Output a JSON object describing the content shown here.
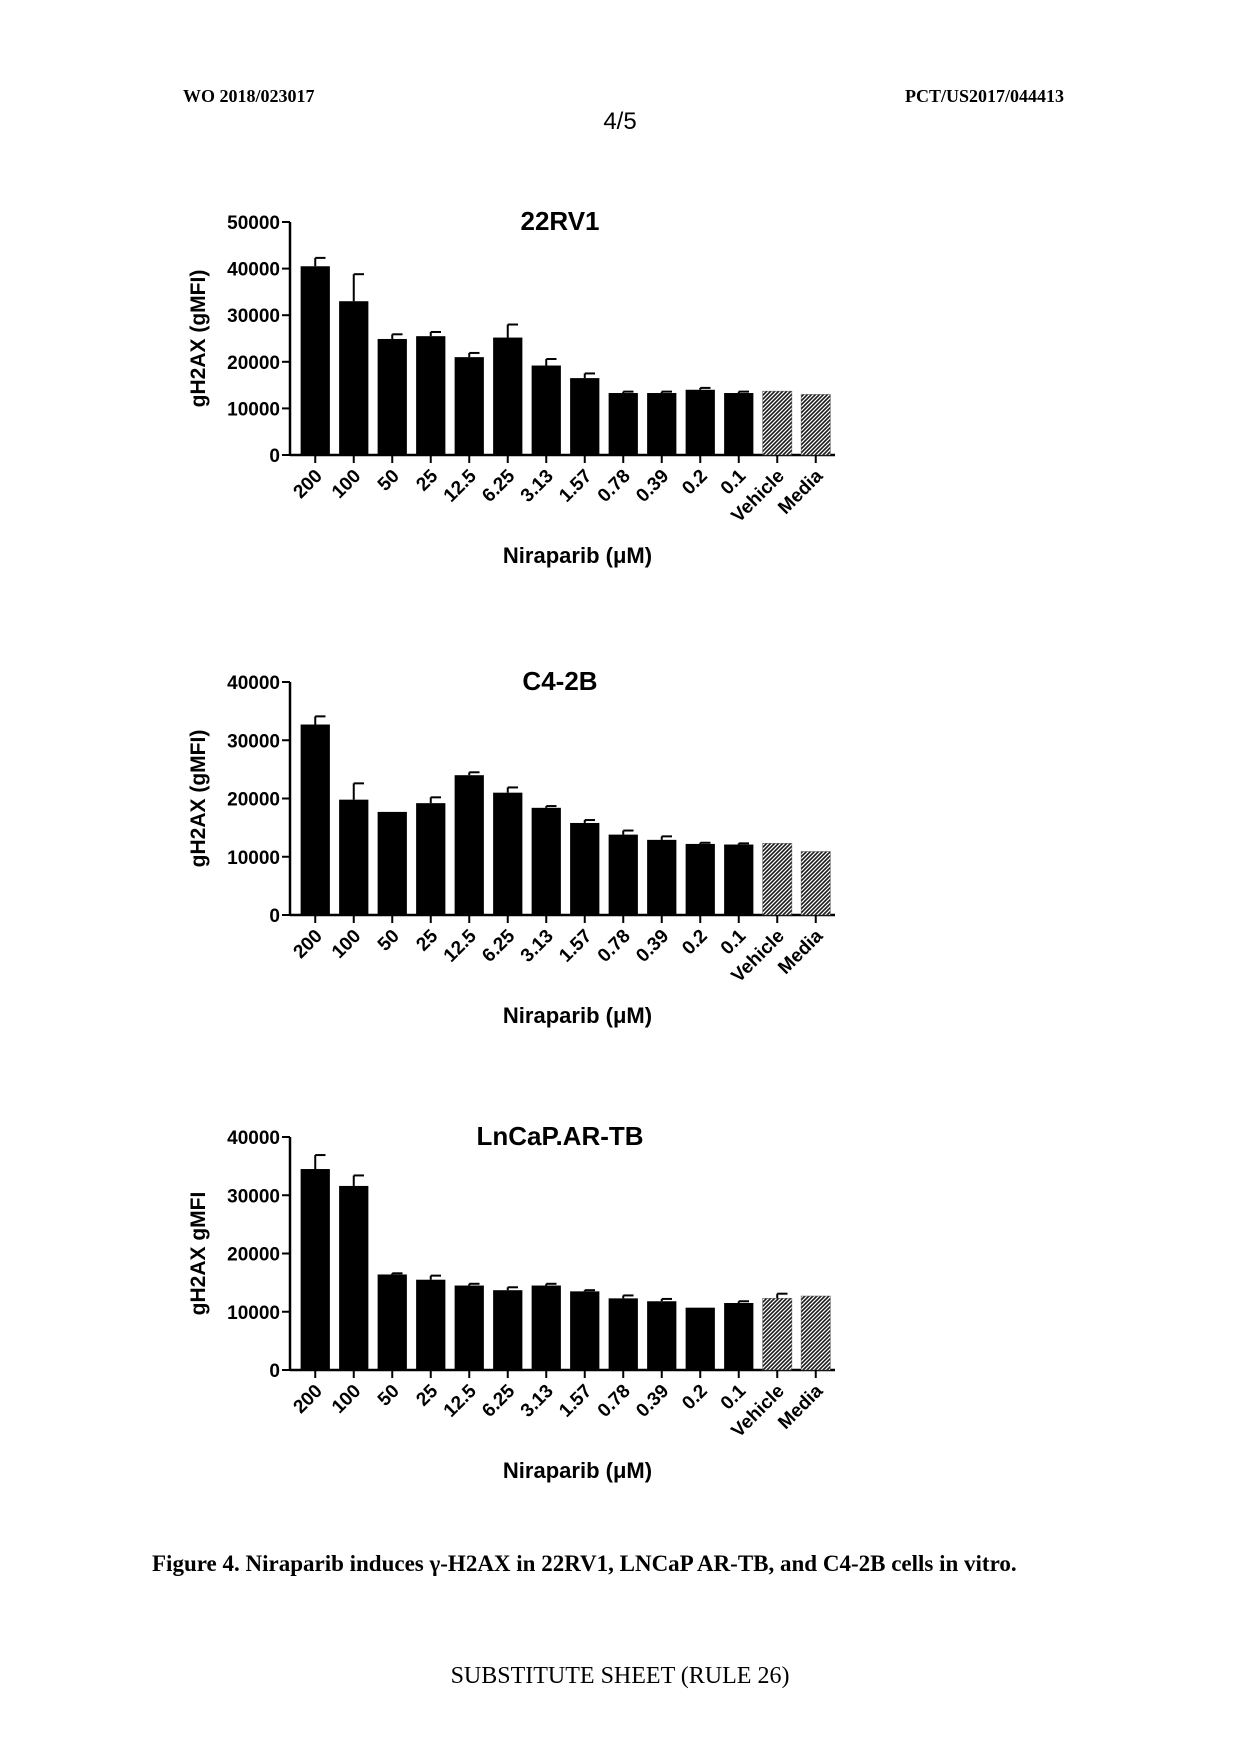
{
  "header": {
    "left": "WO 2018/023017",
    "right": "PCT/US2017/044413",
    "page": "4/5"
  },
  "caption": "Figure 4. Niraparib induces γ-H2AX in 22RV1, LNCaP AR-TB, and C4-2B cells in vitro.",
  "footer": "SUBSTITUTE SHEET (RULE 26)",
  "colors": {
    "bar": "#000000",
    "hatched_bar": "#7a7a7a"
  },
  "chart_data": [
    {
      "type": "bar",
      "title": "22RV1",
      "xlabel": "Niraparib (μM)",
      "ylabel": "gH2AX (gMFI)",
      "ylim": [
        0,
        50000
      ],
      "yticks": [
        0,
        10000,
        20000,
        30000,
        40000,
        50000
      ],
      "categories": [
        "200",
        "100",
        "50",
        "25",
        "12.5",
        "6.25",
        "3.13",
        "1.57",
        "0.78",
        "0.39",
        "0.2",
        "0.1",
        "Vehicle",
        "Media"
      ],
      "values": [
        40500,
        33000,
        24900,
        25500,
        21000,
        25200,
        19200,
        16500,
        13300,
        13300,
        14000,
        13300,
        13700,
        13000
      ],
      "errors": [
        1800,
        5800,
        1000,
        900,
        900,
        2800,
        1400,
        1000,
        300,
        300,
        400,
        300,
        0,
        0
      ],
      "hatched": [
        false,
        false,
        false,
        false,
        false,
        false,
        false,
        false,
        false,
        false,
        false,
        false,
        true,
        true
      ]
    },
    {
      "type": "bar",
      "title": "C4-2B",
      "xlabel": "Niraparib (μM)",
      "ylabel": "gH2AX (gMFI)",
      "ylim": [
        0,
        40000
      ],
      "yticks": [
        0,
        10000,
        20000,
        30000,
        40000
      ],
      "categories": [
        "200",
        "100",
        "50",
        "25",
        "12.5",
        "6.25",
        "3.13",
        "1.57",
        "0.78",
        "0.39",
        "0.2",
        "0.1",
        "Vehicle",
        "Media"
      ],
      "values": [
        32700,
        19800,
        17700,
        19200,
        24000,
        21000,
        18400,
        15800,
        13800,
        12900,
        12200,
        12100,
        12300,
        10900
      ],
      "errors": [
        1400,
        2800,
        0,
        1000,
        500,
        900,
        300,
        500,
        700,
        600,
        200,
        200,
        0,
        0
      ],
      "hatched": [
        false,
        false,
        false,
        false,
        false,
        false,
        false,
        false,
        false,
        false,
        false,
        false,
        true,
        true
      ]
    },
    {
      "type": "bar",
      "title": "LnCaP.AR-TB",
      "xlabel": "Niraparib (μM)",
      "ylabel": "gH2AX gMFI",
      "ylim": [
        0,
        40000
      ],
      "yticks": [
        0,
        10000,
        20000,
        30000,
        40000
      ],
      "categories": [
        "200",
        "100",
        "50",
        "25",
        "12.5",
        "6.25",
        "3.13",
        "1.57",
        "0.78",
        "0.39",
        "0.2",
        "0.1",
        "Vehicle",
        "Media"
      ],
      "values": [
        34500,
        31600,
        16400,
        15500,
        14500,
        13700,
        14500,
        13500,
        12300,
        11800,
        10700,
        11500,
        12300,
        12700
      ],
      "errors": [
        2400,
        1800,
        200,
        700,
        300,
        500,
        300,
        200,
        500,
        400,
        0,
        300,
        800,
        0
      ],
      "hatched": [
        false,
        false,
        false,
        false,
        false,
        false,
        false,
        false,
        false,
        false,
        false,
        false,
        true,
        true
      ]
    }
  ]
}
